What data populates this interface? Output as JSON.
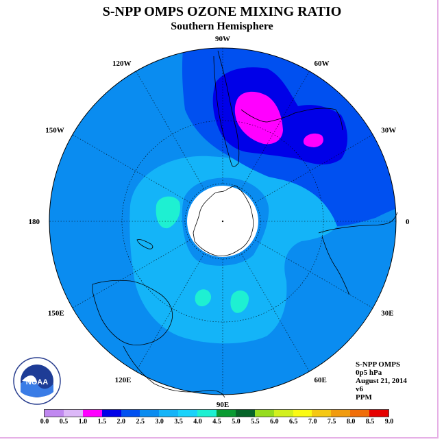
{
  "title": "S-NPP OMPS OZONE MIXING RATIO",
  "subtitle": "Southern Hemisphere",
  "longitude_labels": [
    {
      "text": "90W",
      "lon": -90
    },
    {
      "text": "60W",
      "lon": -60
    },
    {
      "text": "120W",
      "lon": -120
    },
    {
      "text": "30W",
      "lon": -30
    },
    {
      "text": "150W",
      "lon": -150
    },
    {
      "text": "0",
      "lon": 0
    },
    {
      "text": "180",
      "lon": 180
    },
    {
      "text": "30E",
      "lon": 30
    },
    {
      "text": "150E",
      "lon": 150
    },
    {
      "text": "60E",
      "lon": 60
    },
    {
      "text": "120E",
      "lon": 120
    },
    {
      "text": "90E",
      "lon": 90
    }
  ],
  "info": {
    "instrument": "S-NPP OMPS",
    "level": "0p5 hPa",
    "date": "August 21, 2014",
    "version": "v6",
    "units": "PPM"
  },
  "logo": {
    "name": "noaa-logo",
    "text": "NOAA"
  },
  "colorbar": {
    "tick_labels": [
      "0.0",
      "0.5",
      "1.0",
      "1.5",
      "2.0",
      "2.5",
      "3.0",
      "3.5",
      "4.0",
      "4.5",
      "5.0",
      "5.5",
      "6.0",
      "6.5",
      "7.0",
      "7.5",
      "8.0",
      "8.5",
      "9.0"
    ],
    "colors": [
      "#c088f0",
      "#dcb8f8",
      "#ff00ff",
      "#0000e8",
      "#0050f0",
      "#0a8cf0",
      "#14b4f8",
      "#19d2fa",
      "#1ef0d2",
      "#0a9b32",
      "#056428",
      "#96dc1e",
      "#d2f01e",
      "#fafa14",
      "#f5c814",
      "#f09b0f",
      "#f06e0a",
      "#e60000",
      "#78502d"
    ]
  },
  "colors": {
    "ocean_field": "#0a8cf0",
    "field_3_0": "#14b4f8",
    "field_3_5": "#19d2fa",
    "field_4_0": "#1ef0d2",
    "field_2_0": "#0050f0",
    "field_1_5": "#0000e8",
    "field_1_0": "#ff00ff",
    "pole_hole": "#ffffff"
  }
}
